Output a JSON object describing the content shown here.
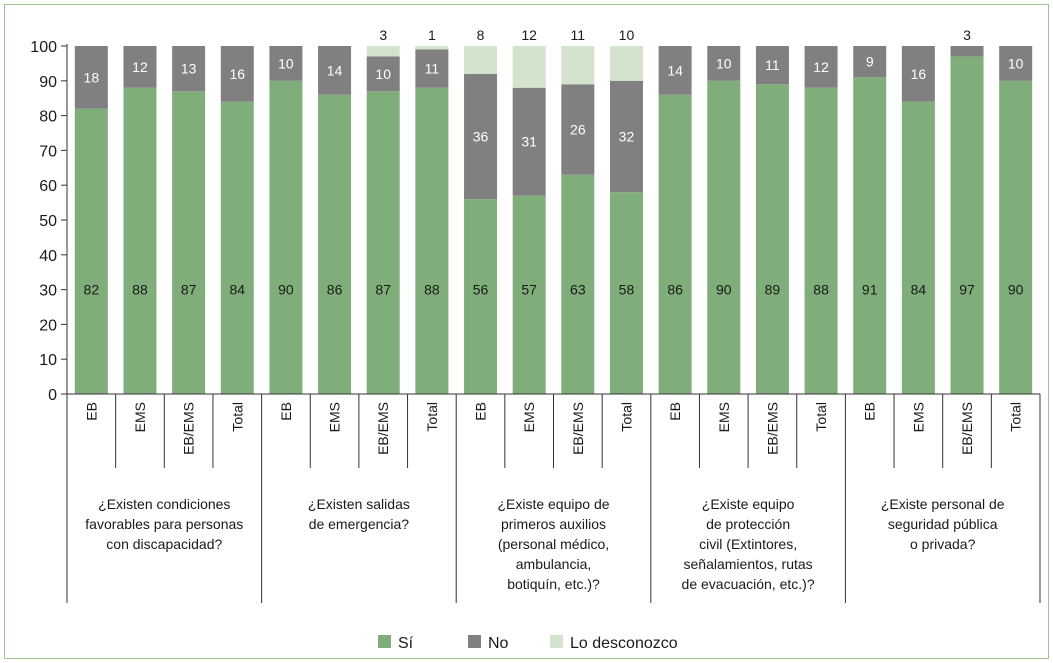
{
  "chart_data": {
    "type": "bar",
    "stacked": true,
    "ylim": [
      0,
      100
    ],
    "yticks": [
      0,
      10,
      20,
      30,
      40,
      50,
      60,
      70,
      80,
      90,
      100
    ],
    "grid": false,
    "legend_position": "bottom",
    "categories": [
      "EB",
      "EMS",
      "EB/EMS",
      "Total",
      "EB",
      "EMS",
      "EB/EMS",
      "Total",
      "EB",
      "EMS",
      "EB/EMS",
      "Total",
      "EB",
      "EMS",
      "EB/EMS",
      "Total",
      "EB",
      "EMS",
      "EB/EMS",
      "Total"
    ],
    "groups": [
      "¿Existen condiciones favorables para personas con discapacidad?",
      "¿Existen salidas de emergencia?",
      "¿Existe equipo de primeros auxilios (personal médico, ambulancia, botiquín, etc.)?",
      "¿Existe equipo de protección civil (Extintores, señalamientos, rutas de evacuación, etc.)?",
      "¿Existe personal de seguridad pública o privada?"
    ],
    "group_lines": [
      [
        "¿Existen condiciones",
        "favorables para personas",
        "con discapacidad?"
      ],
      [
        "¿Existen salidas",
        "de emergencia?"
      ],
      [
        "¿Existe equipo de",
        "primeros auxilios",
        "(personal médico,",
        "ambulancia,",
        "botiquín, etc.)?"
      ],
      [
        "¿Existe equipo",
        "de protección",
        "civil (Extintores,",
        "señalamientos, rutas",
        "de evacuación, etc.)?"
      ],
      [
        "¿Existe personal de",
        "seguridad pública",
        "o privada?"
      ]
    ],
    "series": [
      {
        "name": "Sí",
        "color": "#7fae7a",
        "values": [
          82,
          88,
          87,
          84,
          90,
          86,
          87,
          88,
          56,
          57,
          63,
          58,
          86,
          90,
          89,
          88,
          91,
          84,
          97,
          90
        ]
      },
      {
        "name": "No",
        "color": "#808080",
        "values": [
          18,
          12,
          13,
          16,
          10,
          14,
          10,
          11,
          36,
          31,
          26,
          32,
          14,
          10,
          11,
          12,
          9,
          16,
          3,
          10
        ]
      },
      {
        "name": "Lo desconozco",
        "color": "#d3e3cd",
        "values": [
          0,
          0,
          0,
          0,
          0,
          0,
          3,
          1,
          8,
          12,
          11,
          10,
          0,
          0,
          0,
          0,
          0,
          0,
          0,
          0
        ]
      }
    ]
  }
}
